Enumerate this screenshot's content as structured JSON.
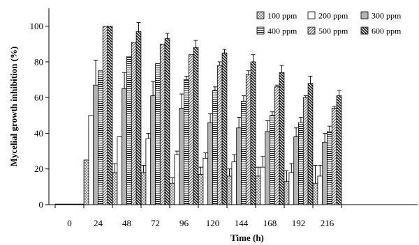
{
  "chart_data": {
    "type": "bar",
    "xlabel": "Time (h)",
    "ylabel": "Mycelial growth inhibition (%)",
    "ylim": [
      0,
      110
    ],
    "yticks": [
      0,
      20,
      40,
      60,
      80,
      100
    ],
    "categories": [
      "0",
      "24",
      "48",
      "72",
      "96",
      "120",
      "144",
      "168",
      "192",
      "216"
    ],
    "legend_position": "top-right",
    "series": [
      {
        "name": "100 ppm",
        "pattern": "crosshatch",
        "values": [
          0,
          25,
          18,
          18,
          12,
          17,
          16,
          16,
          13,
          12
        ],
        "errors": [
          0,
          0,
          5,
          4,
          3,
          4,
          4,
          5,
          6,
          10
        ]
      },
      {
        "name": "200 ppm",
        "pattern": "plain",
        "values": [
          0,
          50,
          38,
          37,
          28,
          26,
          24,
          21,
          18,
          16
        ],
        "errors": [
          0,
          0,
          0,
          3,
          2,
          3,
          4,
          6,
          5,
          6
        ]
      },
      {
        "name": "300 ppm",
        "pattern": "gray",
        "values": [
          0,
          67,
          65,
          61,
          54,
          46,
          43,
          41,
          38,
          35
        ],
        "errors": [
          0,
          14,
          9,
          8,
          8,
          5,
          6,
          6,
          5,
          5
        ]
      },
      {
        "name": "400 ppm",
        "pattern": "horizontal",
        "values": [
          0,
          75,
          83,
          79,
          70,
          64,
          58,
          50,
          46,
          41
        ],
        "errors": [
          0,
          0,
          0,
          0,
          2,
          2,
          3,
          2,
          3,
          3
        ]
      },
      {
        "name": "500 ppm",
        "pattern": "diagonal",
        "values": [
          0,
          100,
          91,
          90,
          84,
          78,
          73,
          66,
          60,
          54
        ],
        "errors": [
          0,
          0,
          0,
          0,
          0,
          2,
          2,
          1,
          1,
          1
        ]
      },
      {
        "name": "600 ppm",
        "pattern": "backdiagonal",
        "values": [
          0,
          100,
          97,
          93,
          88,
          85,
          80,
          74,
          68,
          61
        ],
        "errors": [
          0,
          0,
          5,
          3,
          4,
          2,
          4,
          4,
          4,
          3
        ]
      }
    ]
  }
}
